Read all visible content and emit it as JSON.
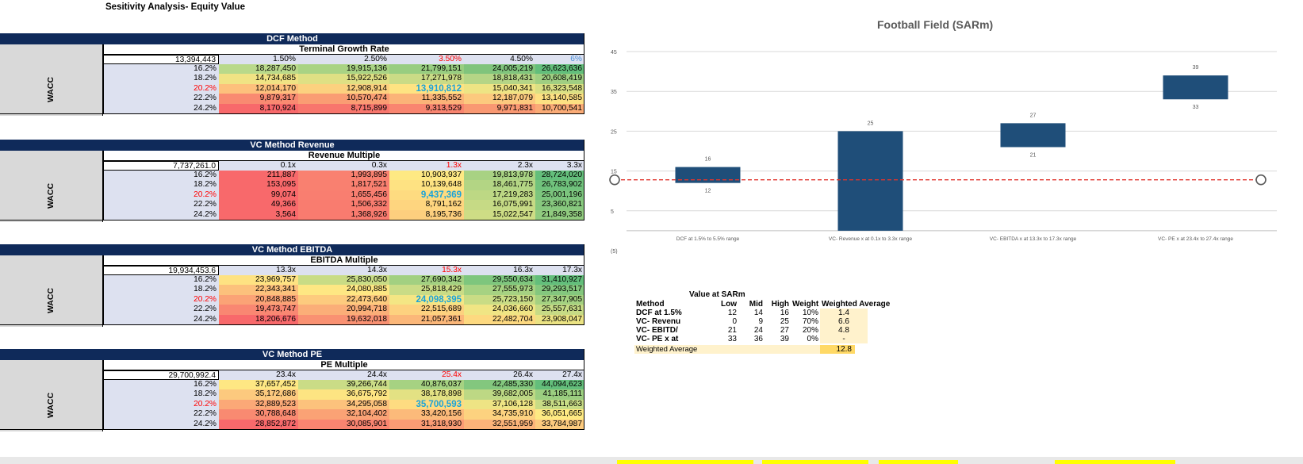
{
  "sheet": {
    "title": "Sesitivity Analysis- Equity Value"
  },
  "blocks": [
    {
      "id": "dcf",
      "header": "DCF Method",
      "subheader": "Terminal Growth Rate",
      "base": "13,394,443",
      "cols": [
        "1.50%",
        "2.50%",
        "3.50%",
        "4.50%",
        "6%"
      ],
      "col_colors": [
        "#000000",
        "#000000",
        "#ff0000",
        "#000000",
        "#4a90d9"
      ],
      "rows": [
        "16.2%",
        "18.2%",
        "20.2%",
        "22.2%",
        "24.2%"
      ],
      "row_colors": [
        "#000000",
        "#000000",
        "#ff0000",
        "#000000",
        "#000000"
      ],
      "axis": "WACC",
      "values": [
        [
          "18,287,450",
          "19,915,136",
          "21,799,151",
          "24,005,219",
          "26,623,636"
        ],
        [
          "14,734,685",
          "15,922,526",
          "17,271,978",
          "18,818,431",
          "20,608,419"
        ],
        [
          "12,014,170",
          "12,908,914",
          "13,910,812",
          "15,040,341",
          "16,323,548"
        ],
        [
          "9,879,317",
          "10,570,474",
          "11,335,552",
          "12,187,079",
          "13,140,585"
        ],
        [
          "8,170,924",
          "8,715,899",
          "9,313,529",
          "9,971,831",
          "10,700,541"
        ]
      ],
      "colors": [
        [
          "#b9d98a",
          "#a9d384",
          "#98cd80",
          "#80c47c",
          "#63be7b"
        ],
        [
          "#f0e384",
          "#dfe084",
          "#cadb86",
          "#b5d586",
          "#a0cf82"
        ],
        [
          "#fdc07c",
          "#fcd17f",
          "#fee382",
          "#eee484",
          "#dae084"
        ],
        [
          "#f98a71",
          "#fa9d73",
          "#fbb378",
          "#fcc97e",
          "#fde082"
        ],
        [
          "#f8696b",
          "#f8766d",
          "#f98570",
          "#f99872",
          "#faab76"
        ]
      ]
    },
    {
      "id": "vc-revenue",
      "header": "VC Method Revenue",
      "subheader": "Revenue Multiple",
      "base": "7,737,261.0",
      "cols": [
        "0.1x",
        "0.3x",
        "1.3x",
        "2.3x",
        "3.3x"
      ],
      "col_colors": [
        "#000000",
        "#000000",
        "#ff0000",
        "#000000",
        "#000000"
      ],
      "rows": [
        "16.2%",
        "18.2%",
        "20.2%",
        "22.2%",
        "24.2%"
      ],
      "row_colors": [
        "#000000",
        "#000000",
        "#ff0000",
        "#000000",
        "#000000"
      ],
      "axis": "WACC",
      "values": [
        [
          "211,887",
          "1,993,895",
          "10,903,937",
          "19,813,978",
          "28,724,020"
        ],
        [
          "153,095",
          "1,817,521",
          "10,139,648",
          "18,461,775",
          "26,783,902"
        ],
        [
          "99,074",
          "1,655,456",
          "9,437,369",
          "17,219,283",
          "25,001,196"
        ],
        [
          "49,366",
          "1,506,332",
          "8,791,162",
          "16,075,991",
          "23,360,821"
        ],
        [
          "3,564",
          "1,368,926",
          "8,195,736",
          "15,022,547",
          "21,849,358"
        ]
      ],
      "colors": [
        [
          "#f8696b",
          "#f98170",
          "#fee983",
          "#a8d283",
          "#63be7b"
        ],
        [
          "#f8696b",
          "#f98070",
          "#fee282",
          "#b3d584",
          "#70c27c"
        ],
        [
          "#f8696b",
          "#f97e70",
          "#fedb80",
          "#bdd884",
          "#7cc57d"
        ],
        [
          "#f8696b",
          "#f97c6f",
          "#fed57f",
          "#c6da85",
          "#87c87e"
        ],
        [
          "#f8696b",
          "#f97b6f",
          "#fdcf7e",
          "#cedd85",
          "#91cb7f"
        ]
      ]
    },
    {
      "id": "vc-ebitda",
      "header": "VC Method EBITDA",
      "subheader": "EBITDA Multiple",
      "base": "19,934,453.6",
      "cols": [
        "13.3x",
        "14.3x",
        "15.3x",
        "16.3x",
        "17.3x"
      ],
      "col_colors": [
        "#000000",
        "#000000",
        "#ff0000",
        "#000000",
        "#000000"
      ],
      "rows": [
        "16.2%",
        "18.2%",
        "20.2%",
        "22.2%",
        "24.2%"
      ],
      "row_colors": [
        "#000000",
        "#000000",
        "#ff0000",
        "#000000",
        "#000000"
      ],
      "axis": "WACC",
      "values": [
        [
          "23,969,757",
          "25,830,050",
          "27,690,342",
          "29,550,634",
          "31,410,927"
        ],
        [
          "22,343,341",
          "24,080,885",
          "25,818,429",
          "27,555,973",
          "29,293,517"
        ],
        [
          "20,848,885",
          "22,473,640",
          "24,098,395",
          "25,723,150",
          "27,347,905"
        ],
        [
          "19,473,747",
          "20,994,718",
          "22,515,689",
          "24,036,660",
          "25,557,631"
        ],
        [
          "18,206,676",
          "19,632,018",
          "21,057,361",
          "22,482,704",
          "23,908,047"
        ]
      ],
      "colors": [
        [
          "#fee282",
          "#c9dc85",
          "#a2d081",
          "#7ec67d",
          "#63be7b"
        ],
        [
          "#fcc17c",
          "#fee783",
          "#cadc86",
          "#a6d282",
          "#84c77e"
        ],
        [
          "#fba376",
          "#fdcb7e",
          "#f4e684",
          "#c9dc85",
          "#a4d181"
        ],
        [
          "#f98772",
          "#fbae78",
          "#fdd17f",
          "#f0e584",
          "#c7db85"
        ],
        [
          "#f8696b",
          "#f99172",
          "#fbb779",
          "#fdd980",
          "#ebe383"
        ]
      ]
    },
    {
      "id": "vc-pe",
      "header": "VC Method PE",
      "subheader": "PE Multiple",
      "base": "29,700,992.4",
      "cols": [
        "23.4x",
        "24.4x",
        "25.4x",
        "26.4x",
        "27.4x"
      ],
      "col_colors": [
        "#000000",
        "#000000",
        "#ff0000",
        "#000000",
        "#000000"
      ],
      "rows": [
        "16.2%",
        "18.2%",
        "20.2%",
        "22.2%",
        "24.2%"
      ],
      "row_colors": [
        "#000000",
        "#000000",
        "#ff0000",
        "#000000",
        "#000000"
      ],
      "axis": "WACC",
      "values": [
        [
          "37,657,452",
          "39,266,744",
          "40,876,037",
          "42,485,330",
          "44,094,623"
        ],
        [
          "35,172,686",
          "36,675,792",
          "38,178,898",
          "39,682,005",
          "41,185,111"
        ],
        [
          "32,889,523",
          "34,295,058",
          "35,700,593",
          "37,106,128",
          "38,511,663"
        ],
        [
          "30,788,648",
          "32,104,402",
          "33,420,156",
          "34,735,910",
          "36,051,665"
        ],
        [
          "28,852,872",
          "30,085,901",
          "31,318,930",
          "32,551,959",
          "33,784,987"
        ]
      ],
      "colors": [
        [
          "#fee783",
          "#cadc86",
          "#a6d282",
          "#83c77e",
          "#63be7b"
        ],
        [
          "#fcc97e",
          "#fde482",
          "#e3e183",
          "#bdd884",
          "#9bce80"
        ],
        [
          "#fba877",
          "#fcc27c",
          "#fedc81",
          "#eee484",
          "#c8dc85"
        ],
        [
          "#f98a71",
          "#faa275",
          "#fcba7a",
          "#fdd27f",
          "#feea83"
        ],
        [
          "#f8696b",
          "#f98470",
          "#fa9b74",
          "#fbb379",
          "#fcca7e"
        ]
      ]
    }
  ],
  "chart_data": {
    "type": "bar",
    "title": "Football Field (SARm)",
    "categories": [
      "DCF at 1.5% to 5.5% range",
      "VC- Revenue x at 0.1x to 3.3x range",
      "VC- EBITDA x at 13.3x to 17.3x range",
      "VC- PE x at 23.4x to 27.4x range"
    ],
    "series": [
      {
        "low": 12,
        "high": 16
      },
      {
        "low": 0,
        "high": 25
      },
      {
        "low": 21,
        "high": 27
      },
      {
        "low": 33,
        "high": 39
      }
    ],
    "low_labels": [
      "12",
      "",
      "21",
      "33"
    ],
    "high_labels": [
      "16",
      "25",
      "27",
      "39"
    ],
    "reference_line": 12.8,
    "yticks": [
      "45",
      "35",
      "25",
      "15",
      "5",
      "(5)"
    ],
    "ylim": [
      -5,
      45
    ],
    "bar_color": "#1f4e79",
    "line_color": "#e0342c"
  },
  "value_table": {
    "title": "Value at SARm",
    "headers": [
      "Method",
      "Low",
      "Mid",
      "High",
      "Weight",
      "Weighted Average"
    ],
    "rows": [
      [
        "DCF at 1.5%",
        "12",
        "14",
        "16",
        "10%",
        "1.4"
      ],
      [
        "VC- Revenu",
        "0",
        "9",
        "25",
        "70%",
        "6.6"
      ],
      [
        "VC- EBITD/",
        "21",
        "24",
        "27",
        "20%",
        "4.8"
      ],
      [
        "VC- PE x at",
        "33",
        "36",
        "39",
        "0%",
        "-"
      ]
    ],
    "footer_label": "Weighted Average",
    "footer_value": "12.8"
  }
}
